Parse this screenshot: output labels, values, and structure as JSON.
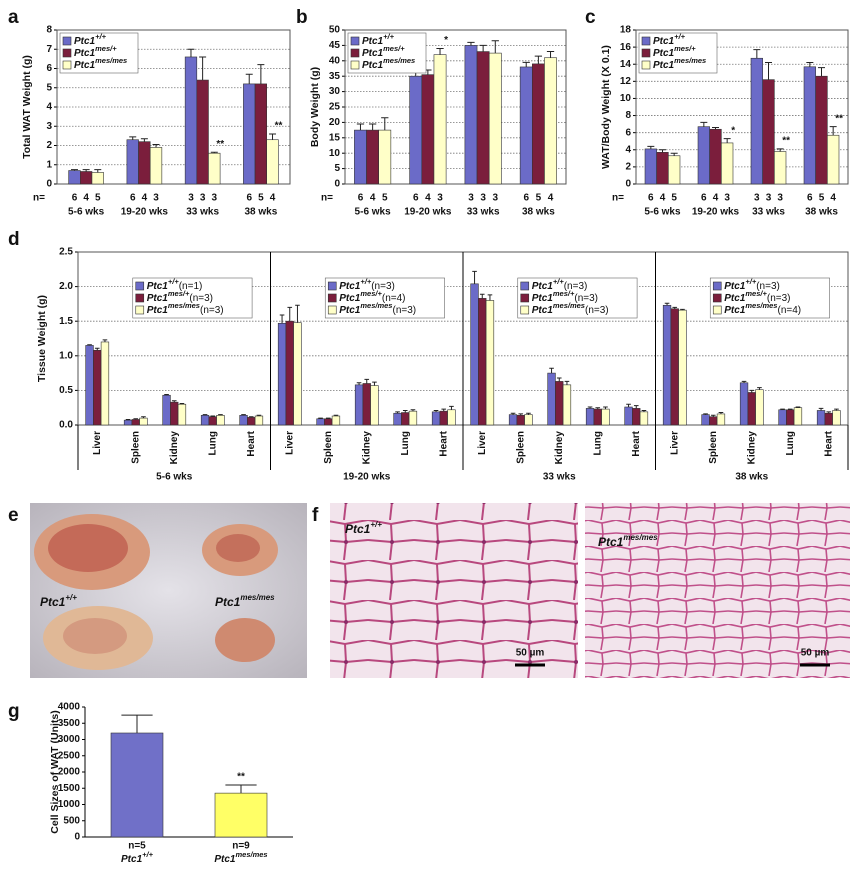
{
  "chart_data": [
    {
      "type": "bar",
      "panel": "a",
      "ylabel": "Total WAT Weight (g)",
      "categories": [
        "5-6 wks",
        "19-20 wks",
        "33 wks",
        "38 wks"
      ],
      "n_label": "n=",
      "ylim": [
        0,
        8
      ],
      "yticks": [
        0,
        1,
        2,
        3,
        4,
        5,
        6,
        7,
        8
      ],
      "grid": true,
      "legend": "upper left",
      "series": [
        {
          "name": "Ptc1",
          "superscript": "+/+",
          "color": "#6b6bc8",
          "values": [
            0.7,
            2.3,
            6.6,
            5.2
          ],
          "errors": [
            0.05,
            0.15,
            0.4,
            0.5
          ],
          "n": [
            6,
            6,
            3,
            6
          ]
        },
        {
          "name": "Ptc1",
          "superscript": "mes/+",
          "color": "#7b1e3c",
          "values": [
            0.65,
            2.2,
            5.4,
            5.2
          ],
          "errors": [
            0.1,
            0.15,
            1.2,
            1.0
          ],
          "n": [
            4,
            4,
            3,
            5
          ]
        },
        {
          "name": "Ptc1",
          "superscript": "mes/mes",
          "color": "#ffffc8",
          "values": [
            0.6,
            1.9,
            1.6,
            2.3
          ],
          "errors": [
            0.15,
            0.15,
            0.05,
            0.3
          ],
          "n": [
            5,
            3,
            3,
            4
          ],
          "significance": [
            null,
            null,
            "**",
            "**"
          ]
        }
      ]
    },
    {
      "type": "bar",
      "panel": "b",
      "ylabel": "Body Weight (g)",
      "categories": [
        "5-6 wks",
        "19-20 wks",
        "33 wks",
        "38 wks"
      ],
      "n_label": "n=",
      "ylim": [
        0,
        50
      ],
      "yticks": [
        0,
        5,
        10,
        15,
        20,
        25,
        30,
        35,
        40,
        45,
        50
      ],
      "grid": true,
      "legend": "upper left",
      "series": [
        {
          "name": "Ptc1",
          "superscript": "+/+",
          "color": "#6b6bc8",
          "values": [
            17.5,
            35,
            45,
            38
          ],
          "errors": [
            2,
            1.5,
            1,
            1.5
          ],
          "n": [
            6,
            6,
            3,
            6
          ]
        },
        {
          "name": "Ptc1",
          "superscript": "mes/+",
          "color": "#7b1e3c",
          "values": [
            17.5,
            35.5,
            43,
            39
          ],
          "errors": [
            2,
            1.5,
            2,
            2.5
          ],
          "n": [
            4,
            4,
            3,
            5
          ]
        },
        {
          "name": "Ptc1",
          "superscript": "mes/mes",
          "color": "#ffffc8",
          "values": [
            17.5,
            42,
            42.5,
            41
          ],
          "errors": [
            4,
            2,
            4,
            2
          ],
          "n": [
            5,
            3,
            3,
            4
          ],
          "significance": [
            null,
            "*",
            null,
            null
          ]
        }
      ]
    },
    {
      "type": "bar",
      "panel": "c",
      "ylabel": "WAT/Body Weight (X 0.1)",
      "categories": [
        "5-6 wks",
        "19-20 wks",
        "33 wks",
        "38 wks"
      ],
      "n_label": "n=",
      "ylim": [
        0,
        18
      ],
      "yticks": [
        0,
        2,
        4,
        6,
        8,
        10,
        12,
        14,
        16,
        18
      ],
      "grid": true,
      "legend": "upper left",
      "series": [
        {
          "name": "Ptc1",
          "superscript": "+/+",
          "color": "#6b6bc8",
          "values": [
            4.1,
            6.7,
            14.7,
            13.7
          ],
          "errors": [
            0.3,
            0.5,
            1.0,
            0.5
          ],
          "n": [
            6,
            6,
            3,
            6
          ]
        },
        {
          "name": "Ptc1",
          "superscript": "mes/+",
          "color": "#7b1e3c",
          "values": [
            3.7,
            6.4,
            12.2,
            12.6
          ],
          "errors": [
            0.3,
            0.2,
            2.0,
            1.0
          ],
          "n": [
            4,
            4,
            3,
            5
          ]
        },
        {
          "name": "Ptc1",
          "superscript": "mes/mes",
          "color": "#ffffc8",
          "values": [
            3.3,
            4.8,
            3.8,
            5.7
          ],
          "errors": [
            0.3,
            0.5,
            0.3,
            1.0
          ],
          "n": [
            5,
            3,
            3,
            4
          ],
          "significance": [
            null,
            "*",
            "**",
            "**"
          ]
        }
      ]
    },
    {
      "type": "bar",
      "panel": "d",
      "ylabel": "Tissue Weight (g)",
      "categories": [
        "Liver",
        "Spleen",
        "Kidney",
        "Lung",
        "Heart",
        "Liver",
        "Spleen",
        "Kidney",
        "Lung",
        "Heart",
        "Liver",
        "Spleen",
        "Kidney",
        "Lung",
        "Heart",
        "Liver",
        "Spleen",
        "Kidney",
        "Lung",
        "Heart"
      ],
      "groups": [
        {
          "label": "5-6 wks",
          "n": [
            "(n=1)",
            "(n=3)",
            "(n=3)"
          ]
        },
        {
          "label": "19-20 wks",
          "n": [
            "(n=3)",
            "(n=4)",
            "(n=3)"
          ]
        },
        {
          "label": "33 wks",
          "n": [
            "(n=3)",
            "(n=3)",
            "(n=3)"
          ]
        },
        {
          "label": "38 wks",
          "n": [
            "(n=3)",
            "(n=3)",
            "(n=4)"
          ]
        }
      ],
      "ylim": [
        0,
        2.5
      ],
      "yticks": [
        {
          "value": 0,
          "label": "0.0"
        },
        0.5,
        {
          "value": 1,
          "label": "1.0"
        },
        1.5,
        {
          "value": 2,
          "label": "2.0"
        },
        2.5
      ],
      "grid": true,
      "legend": "upper center",
      "series": [
        {
          "name": "Ptc1",
          "superscript": "+/+",
          "color": "#6b6bc8",
          "values": [
            1.15,
            0.07,
            0.43,
            0.14,
            0.14,
            1.47,
            0.09,
            0.58,
            0.17,
            0.19,
            2.04,
            0.15,
            0.75,
            0.24,
            0.26,
            1.73,
            0.15,
            0.61,
            0.22,
            0.21
          ],
          "errors": [
            0.01,
            0.01,
            0.01,
            0.01,
            0.01,
            0.12,
            0.01,
            0.03,
            0.02,
            0.02,
            0.18,
            0.02,
            0.07,
            0.02,
            0.04,
            0.03,
            0.01,
            0.02,
            0.01,
            0.03
          ]
        },
        {
          "name": "Ptc1",
          "superscript": "mes/+",
          "color": "#7b1e3c",
          "values": [
            1.08,
            0.08,
            0.33,
            0.12,
            0.11,
            1.5,
            0.09,
            0.6,
            0.18,
            0.2,
            1.83,
            0.14,
            0.63,
            0.23,
            0.24,
            1.68,
            0.12,
            0.47,
            0.22,
            0.17
          ],
          "errors": [
            0.03,
            0.01,
            0.02,
            0.01,
            0.01,
            0.2,
            0.01,
            0.06,
            0.03,
            0.03,
            0.06,
            0.02,
            0.05,
            0.02,
            0.04,
            0.02,
            0.02,
            0.03,
            0.01,
            0.02
          ]
        },
        {
          "name": "Ptc1",
          "superscript": "mes/mes",
          "color": "#ffffc8",
          "values": [
            1.2,
            0.1,
            0.3,
            0.14,
            0.13,
            1.48,
            0.13,
            0.57,
            0.2,
            0.22,
            1.8,
            0.15,
            0.58,
            0.23,
            0.19,
            1.66,
            0.16,
            0.51,
            0.25,
            0.21
          ],
          "errors": [
            0.03,
            0.02,
            0.01,
            0.01,
            0.01,
            0.25,
            0.01,
            0.05,
            0.02,
            0.05,
            0.08,
            0.02,
            0.05,
            0.03,
            0.02,
            0.01,
            0.02,
            0.03,
            0.01,
            0.02
          ]
        }
      ]
    },
    {
      "type": "bar",
      "panel": "g",
      "ylabel": "Cell Sizes of WAT (Units)",
      "categories": [
        "n=5",
        "n=9"
      ],
      "category_names": [
        {
          "name": "Ptc1",
          "superscript": "+/+"
        },
        {
          "name": "Ptc1",
          "superscript": "mes/mes"
        }
      ],
      "ylim": [
        0,
        4000
      ],
      "yticks": [
        0,
        500,
        1000,
        1500,
        2000,
        2500,
        3000,
        3500,
        4000
      ],
      "grid": false,
      "series": [
        {
          "colors": [
            "#7070c8",
            "#ffff66"
          ],
          "values": [
            3200,
            1350
          ],
          "errors": [
            550,
            250
          ],
          "significance": [
            null,
            "**"
          ]
        }
      ]
    }
  ],
  "figures": [
    {
      "panel": "e",
      "labels": [
        {
          "name": "Ptc1",
          "superscript": "+/+"
        },
        {
          "name": "Ptc1",
          "superscript": "mes/mes"
        }
      ]
    },
    {
      "panel": "f",
      "labels": [
        {
          "name": "Ptc1",
          "superscript": "+/+"
        },
        {
          "name": "Ptc1",
          "superscript": "mes/mes"
        }
      ],
      "scale_bars": [
        "50 µm",
        "50 µm"
      ]
    }
  ]
}
